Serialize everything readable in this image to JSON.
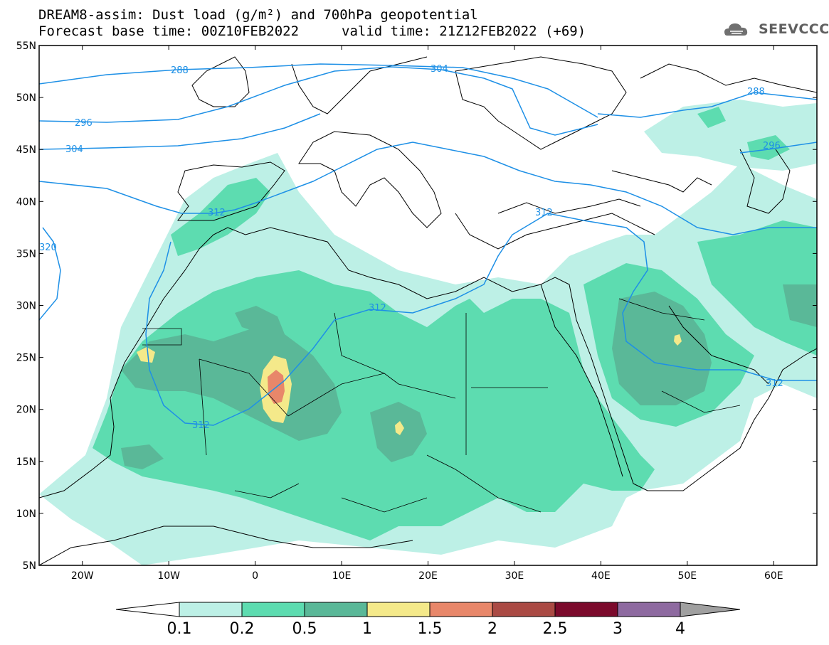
{
  "header": {
    "title_line1": "DREAM8-assim: Dust load (g/m²) and 700hPa geopotential",
    "title_line2": "Forecast base time: 00Z10FEB2022",
    "valid_time": "valid time: 21Z12FEB2022 (+69)"
  },
  "logo": {
    "text": "SEEVCCC",
    "icon": "cloud-logo-icon"
  },
  "map": {
    "lat_labels": [
      "55N",
      "50N",
      "45N",
      "40N",
      "35N",
      "30N",
      "25N",
      "20N",
      "15N",
      "10N",
      "5N"
    ],
    "lon_labels": [
      "20W",
      "10W",
      "0",
      "10E",
      "20E",
      "30E",
      "40E",
      "50E",
      "60E"
    ],
    "contour_labels": [
      "288",
      "304",
      "296",
      "304",
      "312",
      "320",
      "312",
      "312",
      "312",
      "312",
      "288",
      "296"
    ]
  },
  "colorbar": {
    "tick_labels": [
      "0.1",
      "0.2",
      "0.5",
      "1",
      "1.5",
      "2",
      "2.5",
      "3",
      "4"
    ],
    "colors": [
      "#bdf0e6",
      "#5ddcb0",
      "#5ab898",
      "#f4e98a",
      "#e8876a",
      "#aa4a44",
      "#7b0a2c",
      "#8e6aa0"
    ],
    "under_color": "#ffffff",
    "over_color": "#a0a0a0"
  }
}
